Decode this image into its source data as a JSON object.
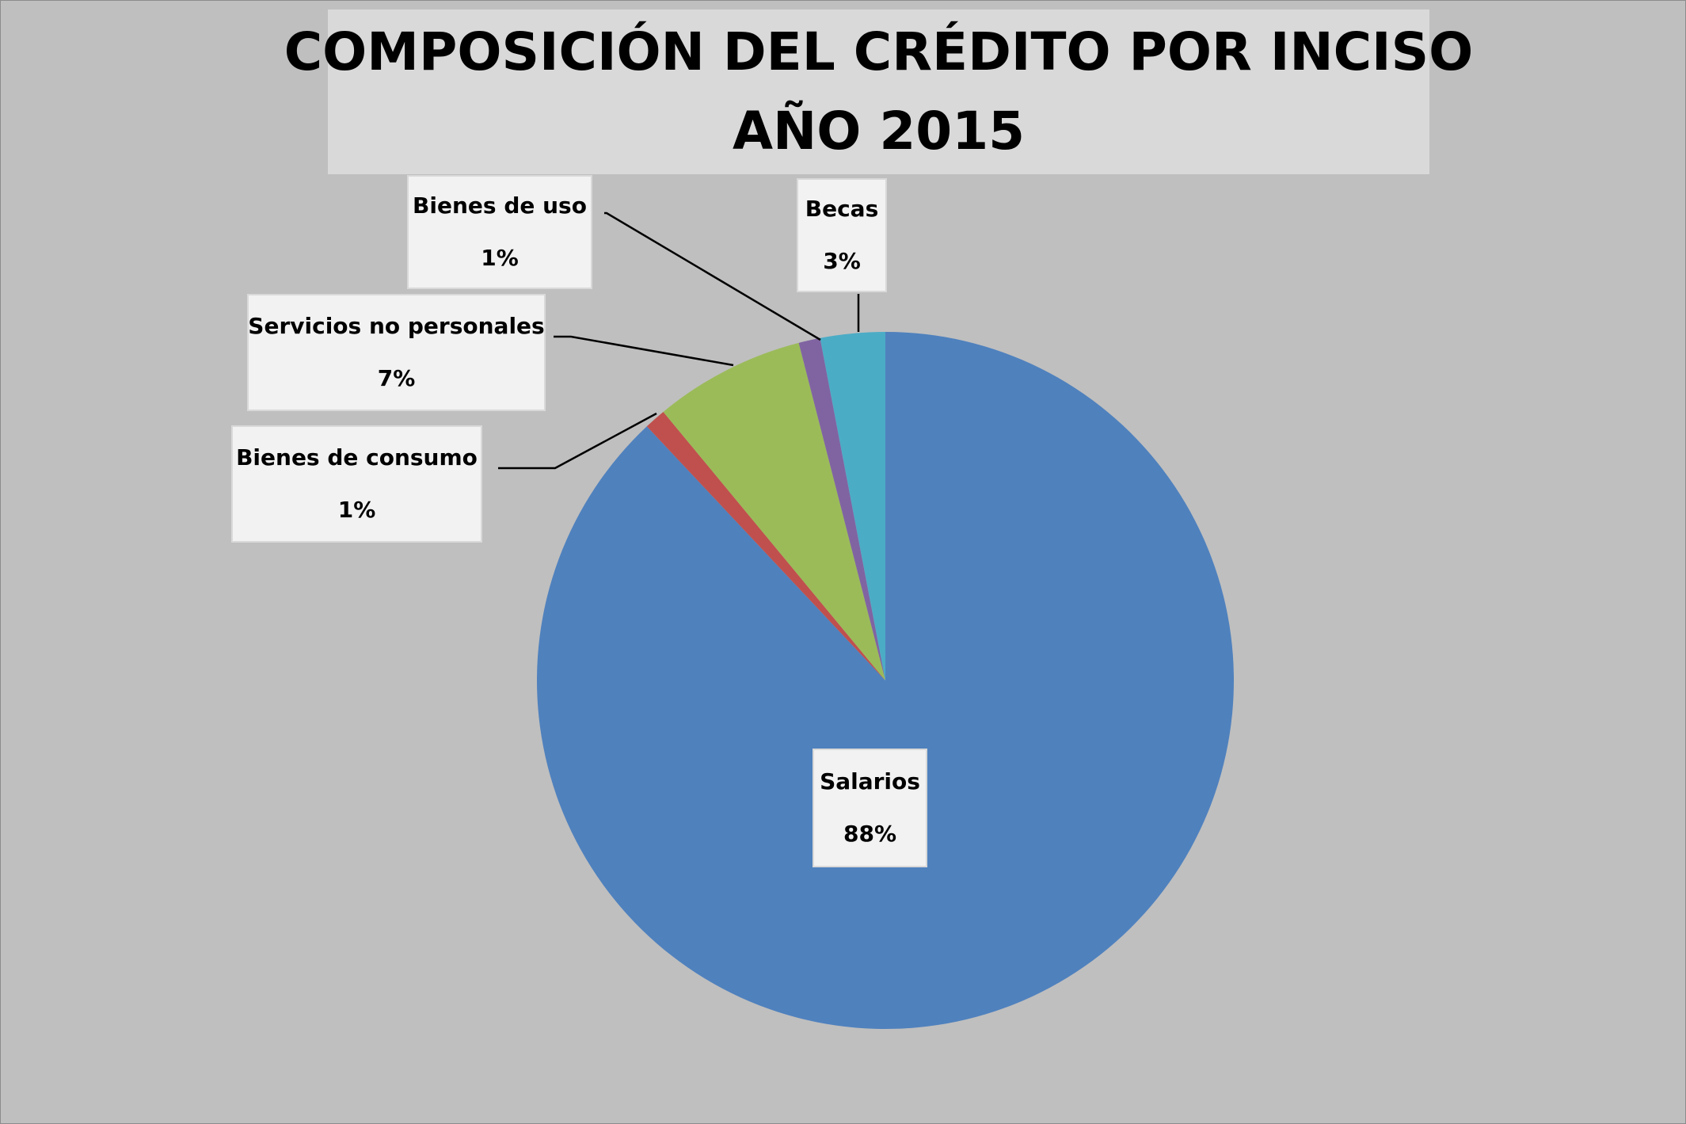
{
  "chart_data": {
    "type": "pie",
    "title": "COMPOSICIÓN DEL CRÉDITO POR INCISO",
    "subtitle": "AÑO 2015",
    "slices": [
      {
        "name": "Salarios",
        "value": 88,
        "label": "88%",
        "color": "#4f81bd"
      },
      {
        "name": "Bienes de consumo",
        "value": 1,
        "label": "1%",
        "color": "#c0504d"
      },
      {
        "name": "Servicios no personales",
        "value": 7,
        "label": "7%",
        "color": "#9bbb59"
      },
      {
        "name": "Bienes de uso",
        "value": 1,
        "label": "1%",
        "color": "#8064a2"
      },
      {
        "name": "Becas",
        "value": 3,
        "label": "3%",
        "color": "#4bacc6"
      }
    ],
    "start_angle": "top",
    "direction": "clockwise",
    "legend": "none",
    "data_labels": "category and percent in callout boxes"
  }
}
